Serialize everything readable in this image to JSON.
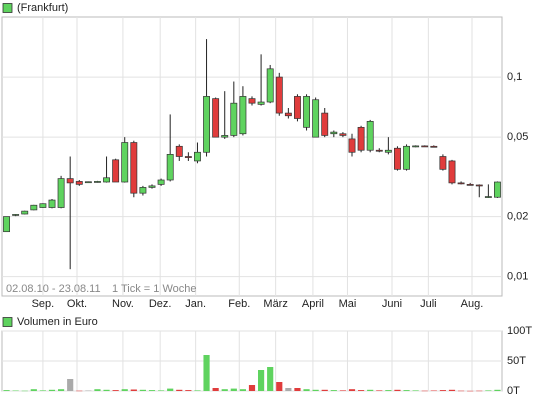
{
  "chart_data": [
    {
      "type": "candlestick",
      "legend": "(Frankfurt)",
      "legend_color": "#5fd35f",
      "period": "02.08.10 - 23.08.11",
      "tick_note": "1 Tick = 1 Woche",
      "log_scale": true,
      "grid": true,
      "up_color": "#5fd35f",
      "down_color": "#e03c3c",
      "xlim": [
        0,
        55
      ],
      "xticks": [
        {
          "value": 4.5,
          "label": "Sep."
        },
        {
          "value": 8.25,
          "label": "Okt."
        },
        {
          "value": 13.3,
          "label": "Nov."
        },
        {
          "value": 17.4,
          "label": "Dez."
        },
        {
          "value": 21.3,
          "label": "Jan."
        },
        {
          "value": 26.1,
          "label": "Feb."
        },
        {
          "value": 30.1,
          "label": "März"
        },
        {
          "value": 34.2,
          "label": "April"
        },
        {
          "value": 38.0,
          "label": "Mai"
        },
        {
          "value": 42.9,
          "label": "Juni"
        },
        {
          "value": 46.9,
          "label": "Juli"
        },
        {
          "value": 51.7,
          "label": "Aug."
        }
      ],
      "ylim": [
        0.008,
        0.2
      ],
      "yticks": [
        {
          "value": 0.01,
          "label": "0,01"
        },
        {
          "value": 0.02,
          "label": "0,02"
        },
        {
          "value": 0.05,
          "label": "0,05"
        },
        {
          "value": 0.1,
          "label": "0,1"
        }
      ],
      "open": [
        0.0168,
        0.0203,
        0.0206,
        0.0216,
        0.0222,
        0.0222,
        0.0222,
        0.031,
        0.03,
        0.0298,
        0.0298,
        0.0298,
        0.0385,
        0.0298,
        0.047,
        0.0262,
        0.028,
        0.029,
        0.0305,
        0.045,
        0.04,
        0.038,
        0.042,
        0.078,
        0.05,
        0.051,
        0.052,
        0.078,
        0.073,
        0.075,
        0.1,
        0.066,
        0.08,
        0.056,
        0.05,
        0.066,
        0.052,
        0.052,
        0.049,
        0.056,
        0.043,
        0.043,
        0.042,
        0.044,
        0.0345,
        0.045,
        0.0452,
        0.045,
        0.04,
        0.038,
        0.0295,
        0.029,
        0.0288,
        0.025,
        0.025
      ],
      "high": [
        0.02,
        0.0206,
        0.0214,
        0.0229,
        0.0233,
        0.0245,
        0.032,
        0.04,
        0.0305,
        0.03,
        0.0302,
        0.04,
        0.039,
        0.05,
        0.048,
        0.0285,
        0.029,
        0.031,
        0.065,
        0.046,
        0.042,
        0.047,
        0.155,
        0.079,
        0.085,
        0.095,
        0.09,
        0.08,
        0.13,
        0.115,
        0.105,
        0.07,
        0.082,
        0.082,
        0.079,
        0.07,
        0.054,
        0.053,
        0.052,
        0.057,
        0.061,
        0.044,
        0.05,
        0.045,
        0.046,
        0.0455,
        0.0455,
        0.0455,
        0.041,
        0.0385,
        0.03,
        0.0295,
        0.029,
        0.029,
        0.03
      ],
      "low": [
        0.0168,
        0.0201,
        0.0205,
        0.0215,
        0.0221,
        0.022,
        0.022,
        0.0109,
        0.0285,
        0.0296,
        0.0296,
        0.0296,
        0.0298,
        0.0296,
        0.025,
        0.0255,
        0.0276,
        0.0285,
        0.03,
        0.038,
        0.038,
        0.037,
        0.04,
        0.05,
        0.049,
        0.05,
        0.051,
        0.072,
        0.072,
        0.074,
        0.064,
        0.062,
        0.06,
        0.054,
        0.05,
        0.05,
        0.05,
        0.05,
        0.04,
        0.042,
        0.042,
        0.042,
        0.041,
        0.034,
        0.034,
        0.0445,
        0.0448,
        0.0445,
        0.034,
        0.029,
        0.029,
        0.0287,
        0.025,
        0.0248,
        0.0248
      ],
      "close": [
        0.02,
        0.0205,
        0.0213,
        0.0228,
        0.0232,
        0.0242,
        0.031,
        0.0295,
        0.029,
        0.0299,
        0.03,
        0.0313,
        0.0298,
        0.047,
        0.0262,
        0.028,
        0.0285,
        0.0305,
        0.041,
        0.04,
        0.0395,
        0.042,
        0.08,
        0.05,
        0.051,
        0.074,
        0.08,
        0.074,
        0.075,
        0.11,
        0.066,
        0.064,
        0.062,
        0.08,
        0.077,
        0.051,
        0.053,
        0.051,
        0.042,
        0.043,
        0.06,
        0.0425,
        0.043,
        0.0345,
        0.045,
        0.0452,
        0.045,
        0.0448,
        0.0345,
        0.0295,
        0.0292,
        0.0288,
        0.0285,
        0.0252,
        0.0298
      ]
    },
    {
      "type": "bar",
      "legend": "Volumen in Euro",
      "legend_color": "#5fd35f",
      "grid": true,
      "xlim": [
        0,
        55
      ],
      "ylim": [
        0,
        100000
      ],
      "yticks": [
        {
          "value": 0,
          "label": "0T"
        },
        {
          "value": 50000,
          "label": "50T"
        },
        {
          "value": 100000,
          "label": "100T"
        }
      ],
      "values": [
        1500,
        800,
        500,
        3000,
        1000,
        2000,
        3000,
        20000,
        500,
        800,
        3000,
        2000,
        1500,
        3000,
        2500,
        2000,
        1500,
        1000,
        4000,
        2000,
        1500,
        1000,
        60000,
        5000,
        3000,
        4000,
        3000,
        10000,
        35000,
        40000,
        15000,
        5000,
        5000,
        3000,
        2000,
        2000,
        1500,
        1000,
        3000,
        1500,
        2000,
        1000,
        1500,
        2000,
        1500,
        1000,
        500,
        800,
        1500,
        2000,
        500,
        300,
        500,
        1000,
        2000
      ],
      "colors": [
        "#5fd35f",
        "#5fd35f",
        "#5fd35f",
        "#5fd35f",
        "#5fd35f",
        "#5fd35f",
        "#5fd35f",
        "#aaaaaa",
        "#e03c3c",
        "#aaaaaa",
        "#5fd35f",
        "#5fd35f",
        "#e03c3c",
        "#5fd35f",
        "#e03c3c",
        "#5fd35f",
        "#5fd35f",
        "#5fd35f",
        "#5fd35f",
        "#e03c3c",
        "#e03c3c",
        "#5fd35f",
        "#5fd35f",
        "#e03c3c",
        "#5fd35f",
        "#5fd35f",
        "#5fd35f",
        "#e03c3c",
        "#5fd35f",
        "#5fd35f",
        "#e03c3c",
        "#aaaaaa",
        "#e03c3c",
        "#5fd35f",
        "#5fd35f",
        "#e03c3c",
        "#5fd35f",
        "#e03c3c",
        "#e03c3c",
        "#e03c3c",
        "#5fd35f",
        "#e03c3c",
        "#5fd35f",
        "#e03c3c",
        "#5fd35f",
        "#5fd35f",
        "#e03c3c",
        "#e03c3c",
        "#e03c3c",
        "#e03c3c",
        "#e03c3c",
        "#e03c3c",
        "#e03c3c",
        "#5fd35f",
        "#5fd35f"
      ]
    }
  ]
}
